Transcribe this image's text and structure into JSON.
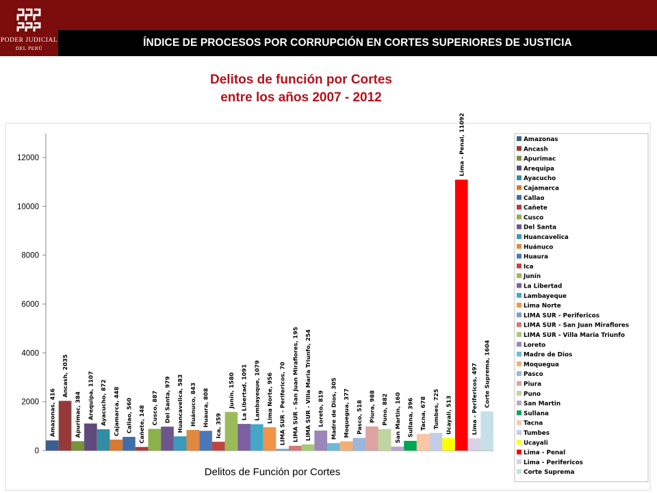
{
  "header": {
    "title": "ÍNDICE DE PROCESOS POR CORRUPCIÓN  EN CORTES SUPERIORES DE JUSTICIA",
    "logo_line1": "PODER JUDICIAL",
    "logo_line2": "DEL PERÚ"
  },
  "colors": {
    "topbar": "#7a0c0c",
    "titlebar": "#000000",
    "title_text": "#b5121b"
  },
  "chart_data": {
    "type": "bar",
    "title_line1": "Delitos de función por Cortes",
    "title_line2": "entre los años 2007 - 2012",
    "xlabel": "Delitos de Función por Cortes",
    "ylabel": "",
    "ylim": [
      0,
      13000
    ],
    "yticks": [
      0,
      2000,
      4000,
      6000,
      8000,
      10000,
      12000
    ],
    "grid": false,
    "legend_position": "right",
    "series": [
      {
        "name": "Amazonas",
        "value": 416,
        "label": "Amazonas, 416",
        "color": "#3a5f8f"
      },
      {
        "name": "Ancash",
        "value": 2035,
        "label": "Ancash, 2035",
        "color": "#963a39"
      },
      {
        "name": "Apurimac",
        "value": 384,
        "label": "Apurimac, 384",
        "color": "#76933c"
      },
      {
        "name": "Arequipa",
        "value": 1107,
        "label": "Arequipa, 1107",
        "color": "#5f4a7b"
      },
      {
        "name": "Ayacucho",
        "value": 872,
        "label": "Ayacucho, 872",
        "color": "#318ca4"
      },
      {
        "name": "Cajamarca",
        "value": 448,
        "label": "Cajamarca, 448",
        "color": "#d77a31"
      },
      {
        "name": "Callao",
        "value": 560,
        "label": "Callao, 560",
        "color": "#3f6da9"
      },
      {
        "name": "Cañete",
        "value": 148,
        "label": "Cañete, 148",
        "color": "#b23b3b"
      },
      {
        "name": "Cusco",
        "value": 887,
        "label": "Cusco, 887",
        "color": "#8cb04a"
      },
      {
        "name": "Del Santa",
        "value": 979,
        "label": "Del Santa, 979",
        "color": "#6e558e"
      },
      {
        "name": "Huancavelica",
        "value": 583,
        "label": "Huancavelica, 583",
        "color": "#3a9ab8"
      },
      {
        "name": "Huánuco",
        "value": 843,
        "label": "Huánuco, 843",
        "color": "#e0893f"
      },
      {
        "name": "Huaura",
        "value": 808,
        "label": "Huaura, 808",
        "color": "#4a78b8"
      },
      {
        "name": "Ica",
        "value": 359,
        "label": "Ica, 359",
        "color": "#c04440"
      },
      {
        "name": "Junín",
        "value": 1580,
        "label": "Junín, 1580",
        "color": "#9bbb59"
      },
      {
        "name": "La Libertad",
        "value": 1091,
        "label": "La Libertad, 1091",
        "color": "#7c5fa0"
      },
      {
        "name": "Lambayeque",
        "value": 1079,
        "label": "Lambayeque, 1079",
        "color": "#43a8c8"
      },
      {
        "name": "Lima Norte",
        "value": 956,
        "label": "Lima Norte, 956",
        "color": "#f09448"
      },
      {
        "name": "LIMA SUR - Perifericos",
        "value": 70,
        "label": "LIMA SUR - Perifericos, 70",
        "color": "#7b9ed1"
      },
      {
        "name": "LIMA SUR - San Juan Miraflores",
        "value": 195,
        "label": "LIMA SUR - San Juan Miraflores, 195",
        "color": "#cf7a78"
      },
      {
        "name": "LIMA SUR - Villa Maria Triunfo",
        "value": 254,
        "label": "LIMA SUR - Villa Maria Triunfo, 254",
        "color": "#a9c97a"
      },
      {
        "name": "Loreto",
        "value": 819,
        "label": "Loreto, 819",
        "color": "#9a86b8"
      },
      {
        "name": "Madre de Dios",
        "value": 305,
        "label": "Madre de Dios, 305",
        "color": "#6cbad6"
      },
      {
        "name": "Moquegua",
        "value": 377,
        "label": "Moquegua, 377",
        "color": "#f4ae74"
      },
      {
        "name": "Pasco",
        "value": 518,
        "label": "Pasco, 518",
        "color": "#9cb5dc"
      },
      {
        "name": "Piura",
        "value": 988,
        "label": "Piura, 988",
        "color": "#dba3a2"
      },
      {
        "name": "Puno",
        "value": 882,
        "label": "Puno, 882",
        "color": "#bfd5a0"
      },
      {
        "name": "San Martin",
        "value": 160,
        "label": "San Martin, 160",
        "color": "#b7a8cc"
      },
      {
        "name": "Sullana",
        "value": 396,
        "label": "Sullana, 396",
        "color": "#00a651"
      },
      {
        "name": "Tacna",
        "value": 678,
        "label": "Tacna, 678",
        "color": "#fbc6a4"
      },
      {
        "name": "Tumbes",
        "value": 725,
        "label": "Tumbes, 725",
        "color": "#c5cde6"
      },
      {
        "name": "Ucayali",
        "value": 513,
        "label": "Ucayali, 513",
        "color": "#ffff00"
      },
      {
        "name": "Lima - Penal",
        "value": 11092,
        "label": "Lima - Penal, 11092",
        "color": "#ff0000"
      },
      {
        "name": "Lima - Perifericos",
        "value": 497,
        "label": "Lima - Perifericos, 497",
        "color": "#d8d0e8"
      },
      {
        "name": "Corte Suprema",
        "value": 1604,
        "label": "Corte Suprema, 1604",
        "color": "#c6dfe8"
      }
    ]
  }
}
